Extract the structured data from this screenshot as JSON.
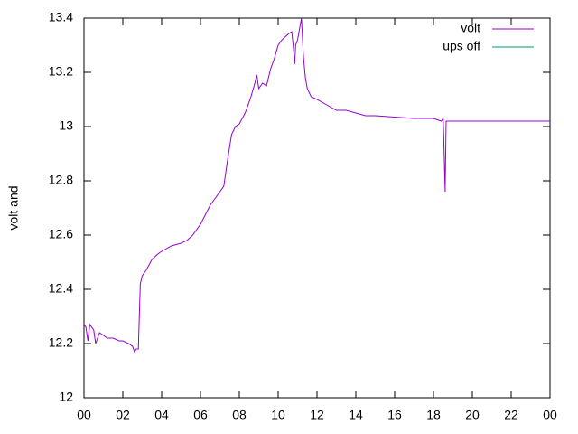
{
  "chart_data": {
    "type": "line",
    "ylabel": "volt and",
    "xlim": [
      0,
      24
    ],
    "xticks": [
      {
        "value": 0,
        "label": "00"
      },
      {
        "value": 2,
        "label": "02"
      },
      {
        "value": 4,
        "label": "04"
      },
      {
        "value": 6,
        "label": "06"
      },
      {
        "value": 8,
        "label": "08"
      },
      10,
      12,
      14,
      16,
      18,
      20,
      22,
      {
        "value": 24,
        "label": "00"
      }
    ],
    "ylim": [
      12,
      13.4
    ],
    "yticks": [
      12,
      12.2,
      12.4,
      12.6,
      12.8,
      13,
      13.2,
      13.4
    ],
    "legend": "top-right",
    "series": [
      {
        "name": "volt",
        "color": "#9400d3",
        "x": [
          0,
          0.1,
          0.2,
          0.3,
          0.5,
          0.6,
          0.8,
          1.0,
          1.2,
          1.5,
          1.8,
          2.0,
          2.3,
          2.5,
          2.6,
          2.7,
          2.8,
          2.85,
          2.9,
          3.0,
          3.2,
          3.5,
          3.8,
          4.0,
          4.5,
          5.0,
          5.3,
          5.6,
          6.0,
          6.5,
          7.0,
          7.2,
          7.4,
          7.6,
          7.8,
          8.0,
          8.3,
          8.6,
          8.8,
          8.9,
          9.0,
          9.2,
          9.4,
          9.6,
          9.8,
          10.0,
          10.2,
          10.5,
          10.7,
          10.8,
          10.85,
          10.9,
          11.0,
          11.1,
          11.2,
          11.3,
          11.4,
          11.5,
          11.7,
          12.0,
          12.5,
          13.0,
          13.5,
          14.0,
          14.5,
          15.0,
          16.0,
          17.0,
          18.0,
          18.4,
          18.5,
          18.55,
          18.6,
          18.65,
          19.0,
          24.0
        ],
        "values": [
          12.27,
          12.26,
          12.21,
          12.27,
          12.25,
          12.2,
          12.24,
          12.23,
          12.22,
          12.22,
          12.21,
          12.21,
          12.2,
          12.19,
          12.17,
          12.18,
          12.18,
          12.3,
          12.42,
          12.45,
          12.47,
          12.51,
          12.53,
          12.54,
          12.56,
          12.57,
          12.58,
          12.6,
          12.64,
          12.71,
          12.76,
          12.78,
          12.88,
          12.97,
          13.0,
          13.01,
          13.05,
          13.11,
          13.16,
          13.19,
          13.14,
          13.16,
          13.15,
          13.21,
          13.25,
          13.3,
          13.32,
          13.34,
          13.35,
          13.28,
          13.23,
          13.3,
          13.32,
          13.36,
          13.4,
          13.26,
          13.18,
          13.14,
          13.11,
          13.1,
          13.08,
          13.06,
          13.06,
          13.05,
          13.04,
          13.04,
          13.035,
          13.03,
          13.03,
          13.02,
          13.03,
          12.9,
          12.76,
          13.02,
          13.02,
          13.02
        ]
      },
      {
        "name": "ups off",
        "color": "#009e73",
        "x": [],
        "values": []
      }
    ]
  }
}
